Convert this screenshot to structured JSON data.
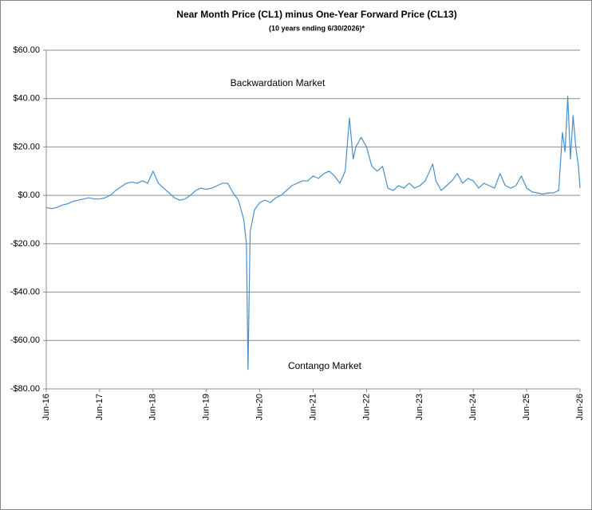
{
  "chart_data": {
    "type": "line",
    "title": "Near Month Price (CL1) minus One-Year Forward Price (CL13)",
    "subtitle": "(10 years ending  6/30/2026)*",
    "annotations": [
      "Backwardation Market",
      "Contango Market"
    ],
    "x": [
      2016.5,
      2016.6,
      2016.7,
      2016.8,
      2016.9,
      2017.0,
      2017.1,
      2017.2,
      2017.3,
      2017.4,
      2017.5,
      2017.6,
      2017.7,
      2017.8,
      2017.9,
      2018.0,
      2018.1,
      2018.2,
      2018.3,
      2018.4,
      2018.5,
      2018.6,
      2018.7,
      2018.8,
      2018.9,
      2019.0,
      2019.1,
      2019.2,
      2019.3,
      2019.4,
      2019.5,
      2019.6,
      2019.7,
      2019.8,
      2019.9,
      2020.0,
      2020.1,
      2020.2,
      2020.25,
      2020.28,
      2020.32,
      2020.4,
      2020.5,
      2020.6,
      2020.7,
      2020.8,
      2020.9,
      2021.0,
      2021.1,
      2021.2,
      2021.3,
      2021.4,
      2021.5,
      2021.6,
      2021.7,
      2021.8,
      2021.9,
      2022.0,
      2022.1,
      2022.18,
      2022.25,
      2022.3,
      2022.4,
      2022.5,
      2022.6,
      2022.7,
      2022.8,
      2022.9,
      2023.0,
      2023.1,
      2023.2,
      2023.3,
      2023.4,
      2023.5,
      2023.6,
      2023.74,
      2023.8,
      2023.9,
      2024.0,
      2024.1,
      2024.2,
      2024.3,
      2024.4,
      2024.5,
      2024.6,
      2024.7,
      2024.8,
      2024.9,
      2025.0,
      2025.1,
      2025.2,
      2025.3,
      2025.4,
      2025.5,
      2025.6,
      2025.7,
      2025.8,
      2025.9,
      2026.0,
      2026.1,
      2026.17,
      2026.22,
      2026.27,
      2026.32,
      2026.37,
      2026.42,
      2026.47,
      2026.5
    ],
    "series": [
      {
        "name": "CL1 - CL13",
        "color": "#4a8fc9",
        "values": [
          -5,
          -5.5,
          -5,
          -4,
          -3.5,
          -2.5,
          -2,
          -1.5,
          -1,
          -1.5,
          -1.5,
          -1,
          0,
          2,
          3.5,
          5,
          5.5,
          5,
          6,
          5,
          10,
          5,
          3,
          1,
          -1,
          -2,
          -1.5,
          0,
          2,
          3,
          2.5,
          3,
          4,
          5,
          5,
          1,
          -2,
          -10,
          -20,
          -72,
          -15,
          -6,
          -3,
          -2,
          -3,
          -1,
          0,
          2,
          4,
          5,
          6,
          6,
          8,
          7,
          9,
          10,
          8,
          5,
          10,
          32,
          15,
          20,
          24,
          20,
          12,
          10,
          12,
          3,
          2,
          4,
          3,
          5,
          3,
          4,
          6,
          13,
          6,
          2,
          4,
          6,
          9,
          5,
          7,
          6,
          3,
          5,
          4,
          3,
          9,
          4,
          3,
          4,
          8,
          3,
          1.5,
          1,
          0.5,
          1,
          1,
          2,
          26,
          18,
          41,
          15,
          33,
          20,
          12,
          3
        ]
      }
    ],
    "xlim": [
      2016.5,
      2026.5
    ],
    "xticks": [
      {
        "value": 2016.5,
        "label": "Jun-16"
      },
      {
        "value": 2017.5,
        "label": "Jun-17"
      },
      {
        "value": 2018.5,
        "label": "Jun-18"
      },
      {
        "value": 2019.5,
        "label": "Jun-19"
      },
      {
        "value": 2020.5,
        "label": "Jun-20"
      },
      {
        "value": 2021.5,
        "label": "Jun-21"
      },
      {
        "value": 2022.5,
        "label": "Jun-22"
      },
      {
        "value": 2023.5,
        "label": "Jun-23"
      },
      {
        "value": 2024.5,
        "label": "Jun-24"
      },
      {
        "value": 2025.5,
        "label": "Jun-25"
      },
      {
        "value": 2026.5,
        "label": "Jun-26"
      }
    ],
    "ylim": [
      -80,
      60
    ],
    "yticks": [
      {
        "value": -80,
        "label": "-$80.00"
      },
      {
        "value": -60,
        "label": "-$60.00"
      },
      {
        "value": -40,
        "label": "-$40.00"
      },
      {
        "value": -20,
        "label": "-$20.00"
      },
      {
        "value": 0,
        "label": "$0.00"
      },
      {
        "value": 20,
        "label": "$20.00"
      },
      {
        "value": 40,
        "label": "$40.00"
      },
      {
        "value": 60,
        "label": "$60.00"
      }
    ],
    "grid": true
  }
}
